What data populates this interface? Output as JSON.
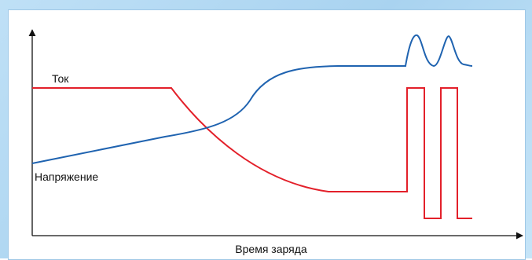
{
  "labels": {
    "current": "Ток",
    "voltage": "Напряжение",
    "x_axis": "Время заряда"
  },
  "colors": {
    "current": "#e3202a",
    "voltage": "#1f63b0",
    "axis": "#111111"
  }
}
